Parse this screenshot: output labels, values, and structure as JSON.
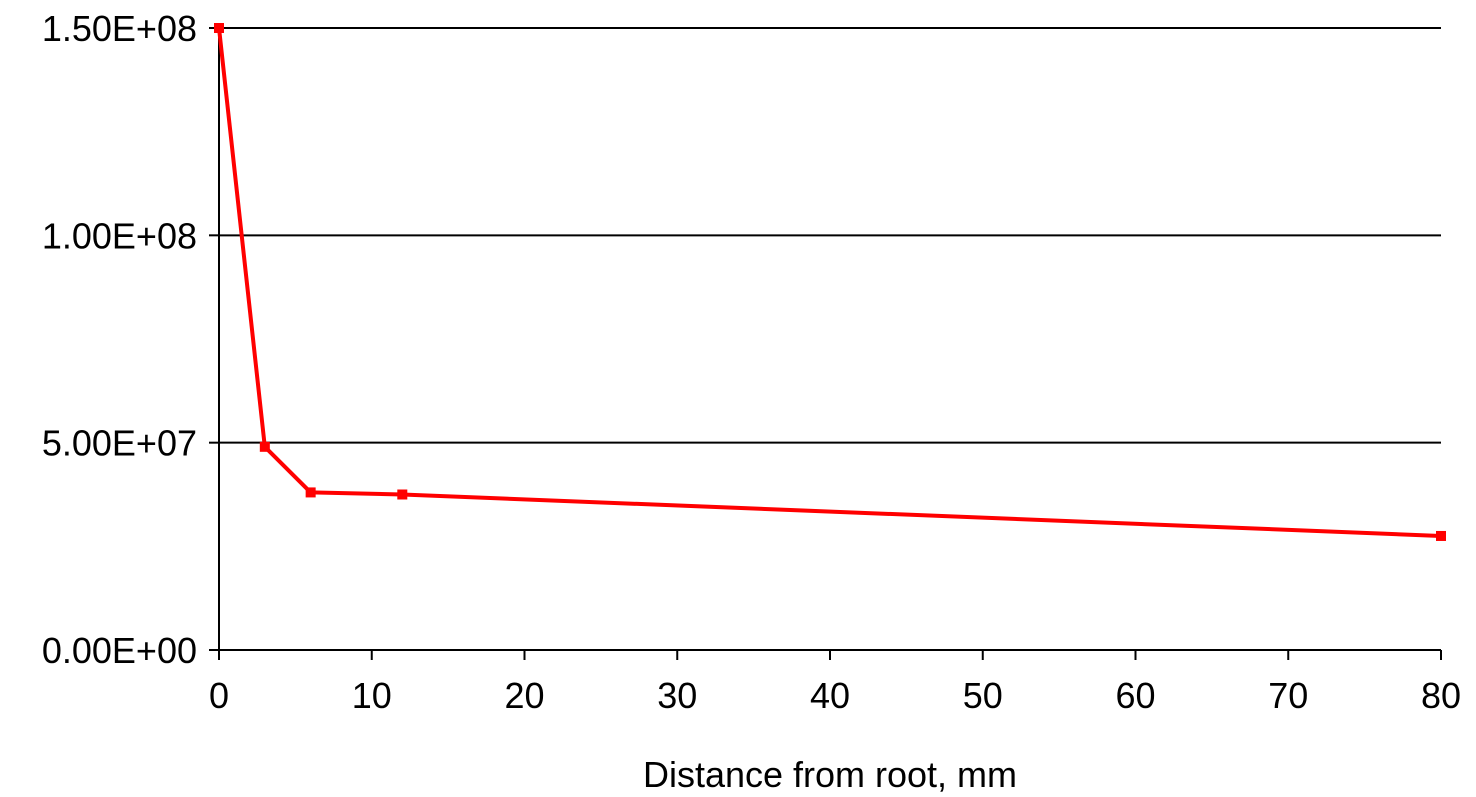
{
  "chart_data": {
    "type": "line",
    "title": "",
    "xlabel": "Distance from root, mm",
    "ylabel": "",
    "xlim": [
      0,
      80
    ],
    "ylim": [
      0,
      150000000
    ],
    "grid": {
      "horizontal": true,
      "vertical": false
    },
    "legend": "none",
    "x_ticks": [
      0,
      10,
      20,
      30,
      40,
      50,
      60,
      70,
      80
    ],
    "x_tick_labels": [
      "0",
      "10",
      "20",
      "30",
      "40",
      "50",
      "60",
      "70",
      "80"
    ],
    "y_ticks": [
      0,
      50000000,
      100000000,
      150000000
    ],
    "y_tick_labels": [
      "0.00E+00",
      "5.00E+07",
      "1.00E+08",
      "1.50E+08"
    ],
    "series": [
      {
        "color": "#ff0000",
        "x": [
          0,
          3,
          6,
          12,
          80
        ],
        "y": [
          150000000,
          49000000,
          38000000,
          37500000,
          27500000
        ]
      }
    ]
  }
}
